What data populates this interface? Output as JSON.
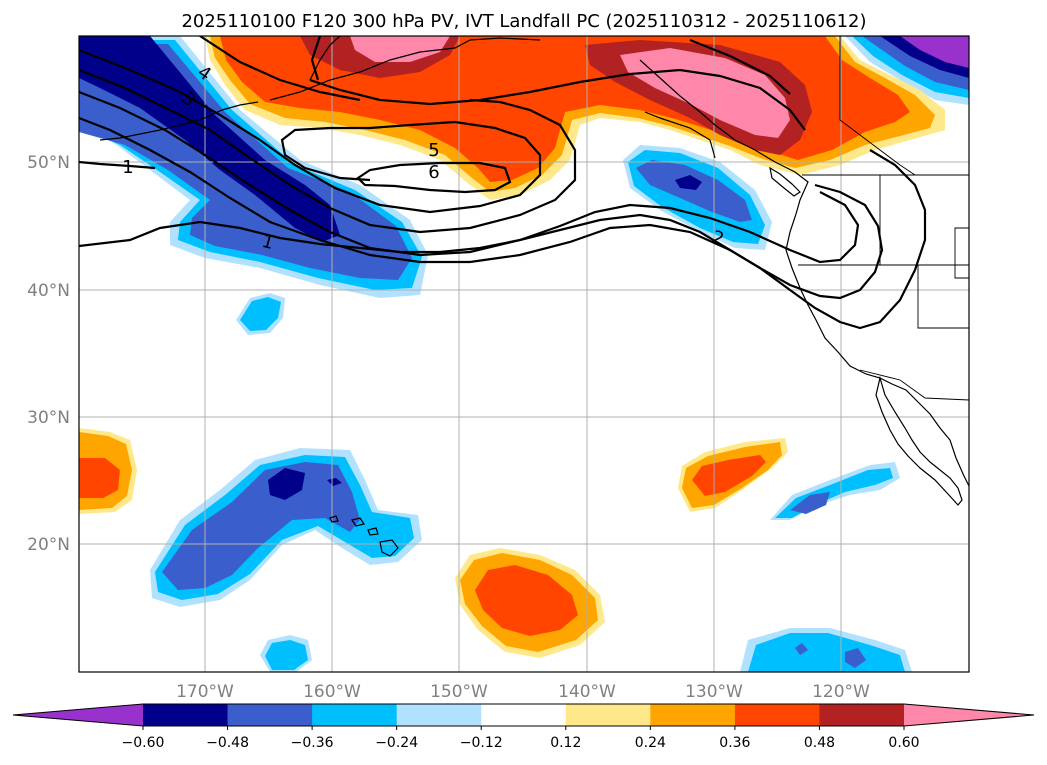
{
  "title": "2025110100 F120 300 hPa PV, IVT Landfall PC (2025110312 - 2025110612)",
  "lat_labels": [
    "50°N",
    "40°N",
    "30°N",
    "20°N"
  ],
  "lon_labels": [
    "170°W",
    "160°W",
    "150°W",
    "140°W",
    "130°W",
    "120°W"
  ],
  "contour_labels": [
    "1",
    "1",
    "2",
    "3",
    "4",
    "5",
    "6"
  ],
  "colorbar": {
    "tick_labels": [
      "−0.60",
      "−0.48",
      "−0.36",
      "−0.24",
      "−0.12",
      "0.12",
      "0.24",
      "0.36",
      "0.48",
      "0.60"
    ],
    "colors": [
      "#9932cc",
      "#00008b",
      "#3a5fcd",
      "#00bfff",
      "#b0e2ff",
      "#ffffff",
      "#ffe88a",
      "#ffa500",
      "#ff4500",
      "#b22222",
      "#ff88aa"
    ]
  },
  "fill_colors": {
    "neg_extreme": "#9932cc",
    "neg_strong": "#00008b",
    "neg_mid": "#3a5fcd",
    "neg_mod": "#00bfff",
    "neg_weak": "#b0e2ff",
    "pos_weak": "#ffe88a",
    "pos_mod": "#ffa500",
    "pos_mid": "#ff4500",
    "pos_strong": "#b22222",
    "pos_extreme": "#ff88aa"
  }
}
